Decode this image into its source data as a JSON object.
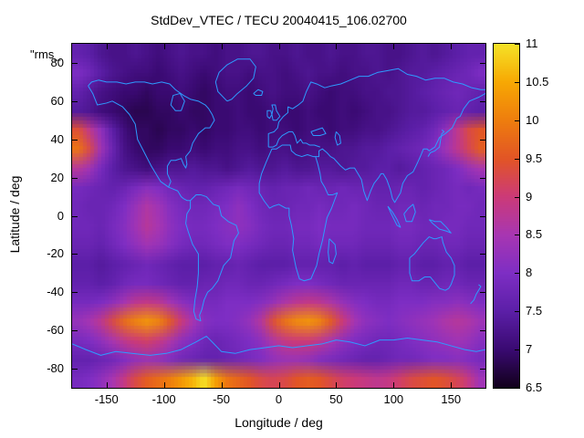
{
  "chart_data": {
    "type": "heatmap",
    "title": "StdDev_VTEC / TECU 20040415_106.02700",
    "legend_label": "\"rms_",
    "xlabel": "Longitude / deg",
    "ylabel": "Latitude / deg",
    "xlim": [
      -180,
      180
    ],
    "ylim": [
      -90,
      90
    ],
    "x_ticks": [
      -150,
      -100,
      -50,
      0,
      50,
      100,
      150
    ],
    "y_ticks": [
      -80,
      -60,
      -40,
      -20,
      0,
      20,
      40,
      60,
      80
    ],
    "colorbar": {
      "min": 6.5,
      "max": 11,
      "ticks": [
        11,
        10.5,
        10,
        9.5,
        9,
        8.5,
        8,
        7.5,
        7,
        6.5
      ]
    },
    "palette": [
      {
        "v": 6.5,
        "c": "#12001c"
      },
      {
        "v": 7.0,
        "c": "#3a0a72"
      },
      {
        "v": 7.5,
        "c": "#5c1fa8"
      },
      {
        "v": 8.0,
        "c": "#7e2ec4"
      },
      {
        "v": 8.5,
        "c": "#a836b2"
      },
      {
        "v": 9.0,
        "c": "#cc3a78"
      },
      {
        "v": 9.5,
        "c": "#e25526"
      },
      {
        "v": 10.0,
        "c": "#ee7d0e"
      },
      {
        "v": 10.5,
        "c": "#f7a803"
      },
      {
        "v": 11.0,
        "c": "#f5e227"
      }
    ],
    "coastline_color": "#2e9bff",
    "grid": {
      "lon_min": -180,
      "lon_max": 180,
      "lat_min": -90,
      "lat_max": 90,
      "cols": 36,
      "rows": 18,
      "values": [
        [
          7.6,
          7.5,
          7.3,
          7.2,
          7.2,
          7.3,
          7.2,
          7.1,
          7.2,
          7.3,
          7.2,
          7.2,
          7.1,
          7.2,
          7.2,
          7.3,
          7.3,
          7.2,
          7.2,
          7.3,
          7.2,
          7.2,
          7.3,
          7.2,
          7.2,
          7.3,
          7.3,
          7.2,
          7.2,
          7.3,
          7.4,
          7.3,
          7.4,
          7.5,
          7.6,
          7.6
        ],
        [
          8.0,
          7.8,
          7.5,
          7.3,
          7.2,
          7.1,
          7.1,
          7.0,
          7.1,
          7.2,
          7.1,
          7.0,
          7.1,
          7.2,
          7.2,
          7.1,
          7.2,
          7.2,
          7.1,
          7.2,
          7.3,
          7.2,
          7.2,
          7.1,
          7.2,
          7.2,
          7.3,
          7.2,
          7.3,
          7.4,
          7.4,
          7.5,
          7.6,
          7.7,
          7.8,
          8.0
        ],
        [
          7.6,
          7.4,
          7.2,
          7.1,
          7.0,
          7.0,
          6.9,
          7.0,
          7.0,
          7.1,
          7.0,
          6.9,
          7.0,
          7.1,
          7.1,
          7.0,
          7.1,
          7.2,
          7.1,
          7.1,
          7.2,
          7.1,
          7.0,
          7.1,
          7.1,
          7.2,
          7.2,
          7.3,
          7.3,
          7.4,
          7.5,
          7.6,
          7.7,
          7.8,
          7.7,
          7.6
        ],
        [
          7.4,
          7.3,
          7.1,
          7.0,
          6.9,
          6.8,
          6.8,
          6.9,
          6.9,
          7.0,
          6.9,
          6.9,
          7.0,
          7.0,
          7.1,
          7.0,
          7.0,
          7.1,
          7.0,
          7.0,
          7.1,
          7.0,
          7.0,
          7.1,
          7.0,
          7.1,
          7.2,
          7.2,
          7.3,
          7.4,
          7.4,
          7.5,
          7.6,
          7.7,
          7.6,
          7.5
        ],
        [
          9.4,
          8.8,
          8.2,
          7.5,
          7.1,
          6.9,
          6.9,
          6.8,
          6.9,
          6.9,
          7.0,
          6.9,
          7.0,
          7.0,
          7.1,
          7.1,
          7.0,
          7.1,
          7.1,
          7.0,
          7.1,
          7.1,
          7.0,
          7.1,
          7.1,
          7.2,
          7.2,
          7.3,
          7.4,
          7.5,
          7.6,
          7.8,
          8.2,
          8.8,
          9.3,
          9.5
        ],
        [
          9.9,
          9.3,
          8.4,
          7.7,
          7.2,
          7.0,
          6.9,
          6.9,
          7.0,
          7.0,
          7.1,
          7.0,
          7.1,
          7.1,
          7.2,
          7.2,
          7.1,
          7.2,
          7.2,
          7.1,
          7.2,
          7.2,
          7.2,
          7.3,
          7.3,
          7.4,
          7.4,
          7.5,
          7.6,
          7.7,
          7.8,
          8.0,
          8.4,
          8.8,
          9.2,
          9.6
        ],
        [
          8.7,
          8.4,
          7.9,
          7.5,
          7.3,
          7.2,
          7.1,
          7.2,
          7.3,
          7.3,
          7.4,
          7.3,
          7.3,
          7.2,
          7.3,
          7.4,
          7.3,
          7.3,
          7.4,
          7.3,
          7.3,
          7.4,
          7.4,
          7.3,
          7.4,
          7.4,
          7.5,
          7.5,
          7.4,
          7.5,
          7.6,
          7.7,
          7.8,
          8.0,
          8.3,
          8.5
        ],
        [
          7.9,
          7.8,
          7.7,
          7.6,
          7.7,
          7.9,
          8.1,
          8.0,
          7.8,
          7.7,
          7.6,
          7.6,
          7.7,
          7.8,
          7.9,
          7.8,
          7.7,
          7.6,
          7.7,
          7.7,
          7.8,
          7.7,
          7.7,
          7.8,
          7.7,
          7.7,
          7.6,
          7.6,
          7.7,
          7.7,
          7.6,
          7.7,
          7.8,
          7.9,
          7.8,
          7.9
        ],
        [
          7.8,
          7.7,
          7.7,
          7.8,
          8.0,
          8.3,
          8.6,
          8.4,
          8.1,
          7.9,
          7.8,
          7.8,
          7.9,
          8.0,
          8.2,
          8.0,
          7.8,
          7.7,
          7.7,
          7.8,
          7.8,
          7.9,
          7.8,
          7.8,
          7.9,
          7.8,
          7.7,
          7.7,
          7.8,
          7.8,
          7.7,
          7.8,
          7.8,
          7.9,
          7.9,
          7.8
        ],
        [
          7.8,
          7.8,
          7.7,
          7.9,
          8.1,
          8.4,
          8.7,
          8.5,
          8.2,
          8.0,
          7.9,
          7.9,
          8.0,
          8.1,
          8.2,
          8.1,
          7.9,
          7.8,
          7.8,
          7.9,
          7.9,
          8.0,
          7.9,
          7.9,
          7.9,
          7.8,
          7.8,
          7.8,
          7.9,
          7.9,
          7.8,
          7.8,
          7.9,
          7.9,
          7.8,
          7.8
        ],
        [
          7.7,
          7.7,
          7.6,
          7.8,
          8.0,
          8.2,
          8.4,
          8.3,
          8.1,
          7.9,
          7.8,
          7.8,
          7.9,
          8.0,
          8.0,
          7.9,
          7.8,
          7.7,
          7.7,
          7.8,
          7.8,
          7.9,
          7.8,
          7.8,
          7.8,
          7.7,
          7.7,
          7.7,
          7.8,
          7.8,
          7.7,
          7.7,
          7.8,
          7.8,
          7.7,
          7.7
        ],
        [
          7.5,
          7.5,
          7.4,
          7.5,
          7.6,
          7.7,
          7.8,
          7.7,
          7.6,
          7.5,
          7.5,
          7.5,
          7.6,
          7.6,
          7.7,
          7.6,
          7.5,
          7.5,
          7.5,
          7.6,
          7.6,
          7.6,
          7.6,
          7.5,
          7.6,
          7.5,
          7.5,
          7.5,
          7.6,
          7.6,
          7.5,
          7.5,
          7.6,
          7.6,
          7.5,
          7.5
        ],
        [
          7.6,
          7.6,
          7.5,
          7.6,
          7.8,
          7.9,
          7.9,
          7.8,
          7.7,
          7.6,
          7.6,
          7.7,
          7.7,
          7.8,
          7.8,
          7.7,
          7.7,
          7.8,
          7.9,
          8.0,
          8.0,
          7.9,
          7.8,
          7.7,
          7.7,
          7.7,
          7.7,
          7.7,
          7.8,
          7.8,
          7.7,
          7.7,
          7.8,
          7.8,
          7.7,
          7.7
        ],
        [
          7.9,
          7.9,
          8.0,
          8.2,
          8.5,
          8.8,
          8.9,
          8.8,
          8.5,
          8.2,
          8.0,
          7.9,
          7.9,
          8.0,
          8.0,
          8.0,
          8.1,
          8.3,
          8.6,
          8.8,
          8.9,
          8.8,
          8.6,
          8.3,
          8.1,
          8.0,
          7.9,
          7.9,
          8.0,
          8.0,
          8.0,
          8.1,
          8.1,
          8.2,
          8.1,
          8.0
        ],
        [
          8.3,
          8.5,
          8.8,
          9.3,
          9.8,
          10.1,
          10.3,
          10.1,
          9.6,
          9.0,
          8.5,
          8.1,
          8.0,
          8.0,
          8.1,
          8.3,
          8.7,
          9.4,
          9.9,
          10.2,
          10.3,
          10.1,
          9.6,
          9.0,
          8.5,
          8.2,
          8.1,
          8.0,
          8.1,
          8.2,
          8.3,
          8.4,
          8.6,
          8.7,
          8.6,
          8.4
        ],
        [
          7.9,
          8.0,
          8.2,
          8.5,
          8.8,
          9.0,
          9.1,
          8.9,
          8.6,
          8.2,
          8.0,
          7.8,
          7.7,
          7.8,
          7.9,
          8.0,
          8.2,
          8.6,
          8.9,
          9.0,
          9.0,
          8.8,
          8.5,
          8.2,
          8.0,
          7.9,
          7.8,
          7.8,
          7.9,
          8.0,
          8.1,
          8.2,
          8.3,
          8.4,
          8.3,
          8.1
        ],
        [
          7.6,
          7.6,
          7.7,
          7.8,
          8.0,
          8.2,
          8.3,
          8.2,
          8.0,
          7.8,
          7.7,
          7.6,
          7.6,
          7.7,
          7.8,
          7.9,
          8.0,
          8.2,
          8.3,
          8.3,
          8.2,
          8.0,
          7.9,
          7.8,
          7.7,
          7.6,
          7.6,
          7.7,
          7.8,
          7.8,
          7.9,
          8.0,
          8.0,
          8.1,
          8.0,
          7.9
        ],
        [
          7.9,
          8.0,
          8.2,
          8.5,
          8.9,
          9.3,
          9.6,
          9.8,
          10.0,
          10.3,
          10.6,
          11.0,
          10.4,
          9.9,
          9.7,
          9.5,
          9.3,
          9.2,
          9.3,
          9.5,
          9.6,
          9.5,
          9.3,
          9.1,
          9.0,
          8.9,
          8.8,
          8.9,
          9.1,
          9.3,
          9.4,
          9.5,
          9.4,
          9.2,
          8.9,
          8.4
        ]
      ]
    }
  }
}
